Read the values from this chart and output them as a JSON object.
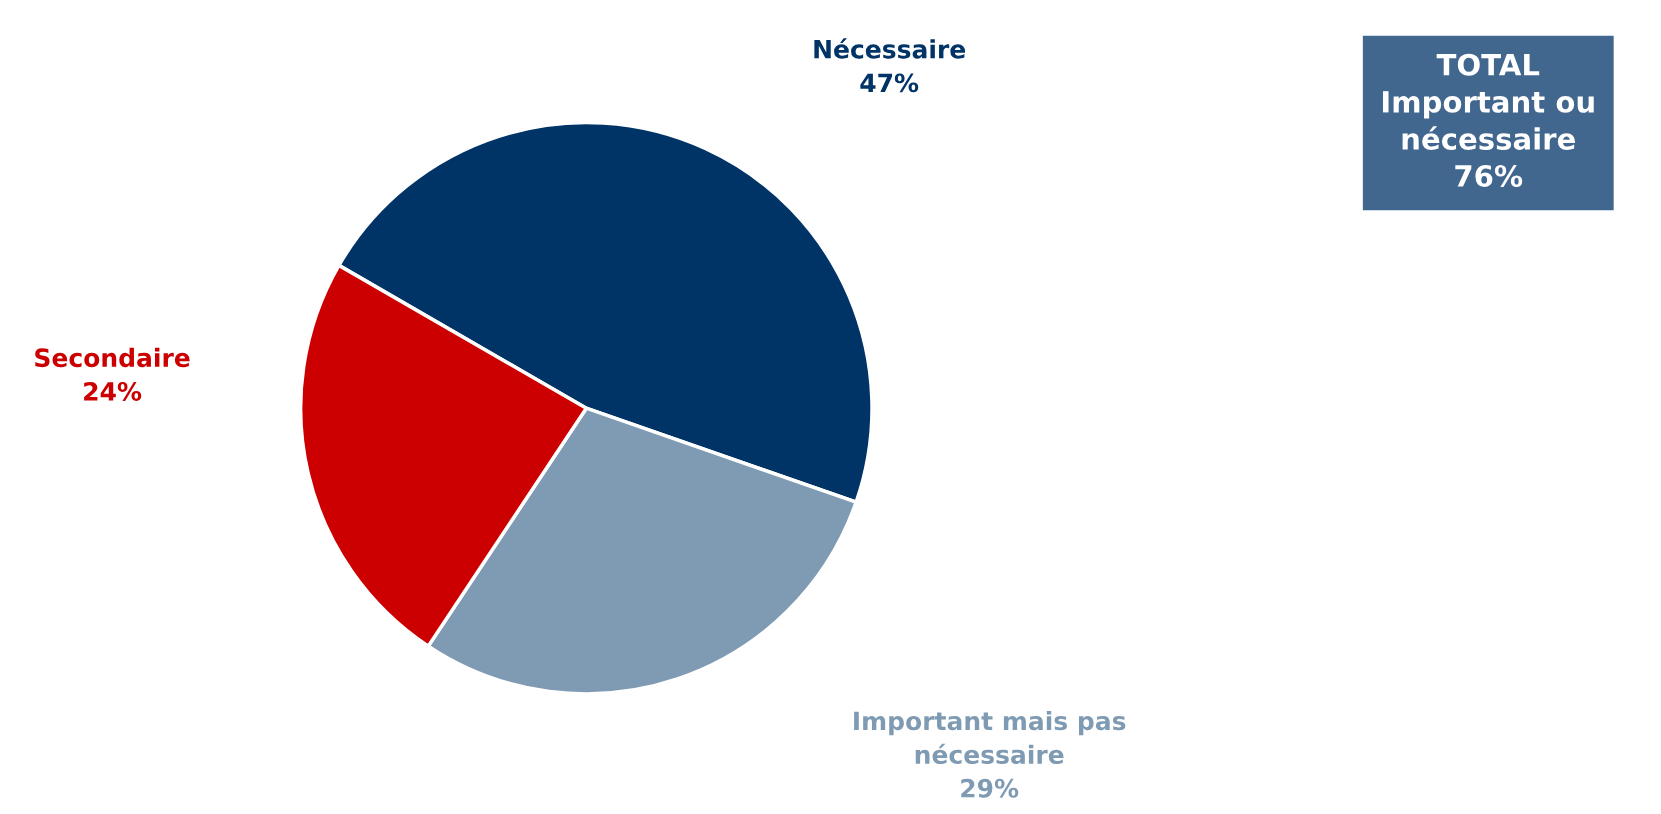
{
  "chart_data": {
    "type": "pie",
    "categories": [
      "Nécessaire",
      "Important mais pas nécessaire",
      "Secondaire"
    ],
    "values": [
      47,
      29,
      24
    ],
    "colors": [
      "#003366",
      "#7f9bb3",
      "#cc0000"
    ],
    "value_labels": [
      "47%",
      "29%",
      "24%"
    ],
    "annotations": [
      "TOTAL\nImportant ou\nnécessaire\n76%"
    ],
    "legend": false
  }
}
